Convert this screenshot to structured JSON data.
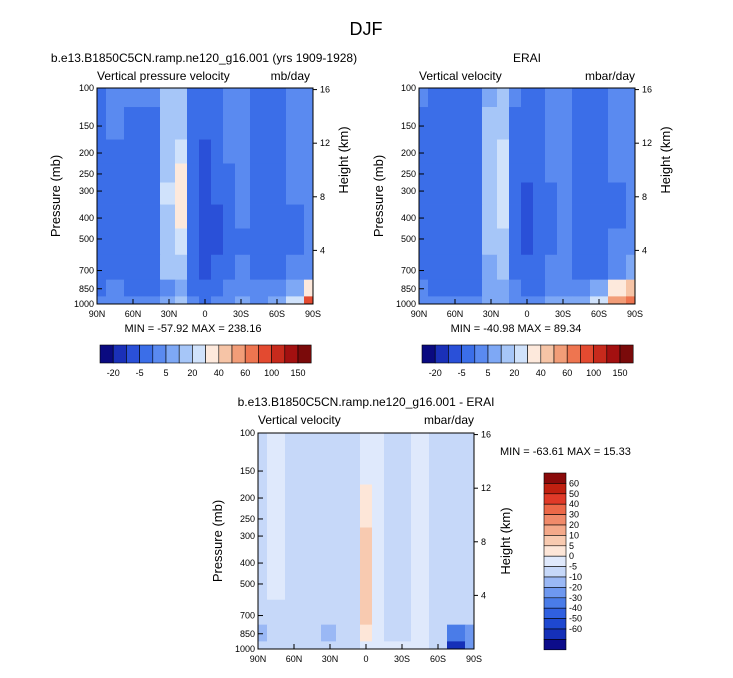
{
  "page_title": "DJF",
  "colors": {
    "cb_diverging": [
      "#0a0a80",
      "#1a30b8",
      "#2a50d8",
      "#3b6ee8",
      "#5a8af0",
      "#7ea8f5",
      "#a6c6f8",
      "#d0e2fb",
      "#fde9dc",
      "#f6c4a6",
      "#f29d78",
      "#ee7550",
      "#e34a30",
      "#c72a1c",
      "#a31010",
      "#7a0a0a"
    ],
    "cb_diff": [
      "#0c0c8a",
      "#1530b8",
      "#1e48d0",
      "#3060e0",
      "#4a7ce8",
      "#6e98f0",
      "#9ab8f5",
      "#c6d8f9",
      "#dfe9fc",
      "#fde6d8",
      "#f8cab0",
      "#f4a98a",
      "#f08a6a",
      "#ec6848",
      "#e03a28",
      "#c02010",
      "#8a0a0a"
    ]
  },
  "chart_data": [
    {
      "type": "heatmap",
      "title": "b.e13.B1850C5CN.ramp.ne120_g16.001 (yrs 1909-1928)",
      "left_label": "Vertical pressure velocity",
      "right_label": "mb/day",
      "ylabel": "Pressure (mb)",
      "ylabel_right": "Height (km)",
      "x_ticks": [
        "90N",
        "60N",
        "30N",
        "0",
        "30S",
        "60S",
        "90S"
      ],
      "y_ticks": [
        "100",
        "150",
        "200",
        "250",
        "300",
        "400",
        "500",
        "700",
        "850",
        "1000"
      ],
      "y_ticks_right": [
        "16",
        "12",
        "8",
        "4"
      ],
      "stats": "MIN = -57.92   MAX = 238.16",
      "colorbar_labels": [
        "-20",
        "-5",
        "5",
        "20",
        "40",
        "60",
        "100",
        "150"
      ],
      "x": [
        90,
        75,
        60,
        45,
        30,
        20,
        10,
        0,
        -10,
        -20,
        -30,
        -45,
        -60,
        -75,
        -90
      ],
      "y": [
        100,
        150,
        200,
        250,
        300,
        400,
        500,
        700,
        850,
        1000
      ],
      "z": [
        [
          -14,
          -10,
          -10,
          -10,
          -2,
          -1,
          -13,
          -19,
          -16,
          -10,
          -8,
          -11,
          -11,
          -9,
          -7
        ],
        [
          -14,
          -10,
          -11,
          -11,
          -2,
          1,
          -13,
          -20,
          -17,
          -10,
          -8,
          -12,
          -12,
          -9,
          -7
        ],
        [
          -15,
          -11,
          -12,
          -12,
          0,
          3,
          -14,
          -22,
          -18,
          -10,
          -9,
          -13,
          -12,
          -9,
          -7
        ],
        [
          -15,
          -11,
          -13,
          -13,
          1,
          5,
          -16,
          -24,
          -19,
          -11,
          -9,
          -13,
          -13,
          -10,
          -7
        ],
        [
          -16,
          -12,
          -14,
          -14,
          2,
          6,
          -17,
          -26,
          -20,
          -11,
          -10,
          -14,
          -13,
          -10,
          -8
        ],
        [
          -16,
          -12,
          -15,
          -15,
          1,
          5,
          -18,
          -28,
          -21,
          -12,
          -10,
          -15,
          -14,
          -11,
          -8
        ],
        [
          -16,
          -12,
          -16,
          -16,
          0,
          3,
          -18,
          -28,
          -21,
          -12,
          -11,
          -15,
          -14,
          -11,
          -8
        ],
        [
          -16,
          -12,
          -17,
          -17,
          -2,
          0,
          -17,
          -26,
          -19,
          -11,
          -10,
          -14,
          -13,
          -10,
          -7
        ],
        [
          -12,
          -10,
          -15,
          -15,
          -6,
          -4,
          -12,
          -20,
          -14,
          -9,
          -8,
          -10,
          -10,
          -5,
          5
        ],
        [
          -8,
          -6,
          -10,
          -10,
          -4,
          -2,
          -8,
          -14,
          -10,
          -6,
          -5,
          -7,
          -4,
          3,
          60
        ]
      ]
    },
    {
      "type": "heatmap",
      "title": "ERAI",
      "left_label": "Vertical velocity",
      "right_label": "mbar/day",
      "ylabel": "Pressure (mb)",
      "ylabel_right": "Height (km)",
      "x_ticks": [
        "90N",
        "60N",
        "30N",
        "0",
        "30S",
        "60S",
        "90S"
      ],
      "y_ticks": [
        "100",
        "150",
        "200",
        "250",
        "300",
        "400",
        "500",
        "700",
        "850",
        "1000"
      ],
      "y_ticks_right": [
        "16",
        "12",
        "8",
        "4"
      ],
      "stats": "MIN = -40.98   MAX =  89.34",
      "colorbar_labels": [
        "-20",
        "-5",
        "5",
        "20",
        "40",
        "60",
        "100",
        "150"
      ],
      "x": [
        90,
        75,
        60,
        45,
        30,
        20,
        10,
        0,
        -10,
        -20,
        -30,
        -45,
        -60,
        -75,
        -90
      ],
      "y": [
        100,
        150,
        200,
        250,
        300,
        400,
        500,
        700,
        850,
        1000
      ],
      "z": [
        [
          -10,
          -11,
          -11,
          -11,
          -3,
          -2,
          -10,
          -14,
          -13,
          -8,
          -7,
          -11,
          -11,
          -8,
          -7
        ],
        [
          -11,
          -12,
          -12,
          -12,
          -2,
          0,
          -11,
          -15,
          -14,
          -9,
          -8,
          -12,
          -12,
          -9,
          -7
        ],
        [
          -12,
          -12,
          -13,
          -13,
          -1,
          2,
          -12,
          -17,
          -15,
          -10,
          -9,
          -13,
          -13,
          -10,
          -8
        ],
        [
          -12,
          -13,
          -14,
          -14,
          0,
          3,
          -13,
          -19,
          -16,
          -10,
          -9,
          -14,
          -14,
          -10,
          -8
        ],
        [
          -13,
          -13,
          -15,
          -15,
          1,
          4,
          -14,
          -21,
          -17,
          -11,
          -10,
          -15,
          -14,
          -11,
          -8
        ],
        [
          -13,
          -14,
          -16,
          -16,
          0,
          3,
          -15,
          -23,
          -18,
          -11,
          -10,
          -15,
          -15,
          -11,
          -9
        ],
        [
          -13,
          -14,
          -17,
          -17,
          -1,
          1,
          -15,
          -22,
          -17,
          -11,
          -10,
          -15,
          -14,
          -10,
          -8
        ],
        [
          -13,
          -14,
          -17,
          -17,
          -3,
          -2,
          -14,
          -20,
          -15,
          -10,
          -9,
          -13,
          -11,
          -6,
          -4
        ],
        [
          -10,
          -12,
          -14,
          -14,
          -5,
          -4,
          -10,
          -15,
          -11,
          -8,
          -7,
          -9,
          -4,
          5,
          15
        ],
        [
          -6,
          -8,
          -9,
          -9,
          -4,
          -3,
          -7,
          -10,
          -7,
          -5,
          -4,
          -3,
          3,
          30,
          50
        ]
      ]
    },
    {
      "type": "heatmap",
      "title": "b.e13.B1850C5CN.ramp.ne120_g16.001 - ERAI",
      "left_label": "Vertical velocity",
      "right_label": "mbar/day",
      "ylabel": "Pressure (mb)",
      "ylabel_right": "Height (km)",
      "x_ticks": [
        "90N",
        "60N",
        "30N",
        "0",
        "30S",
        "60S",
        "90S"
      ],
      "y_ticks": [
        "100",
        "150",
        "200",
        "250",
        "300",
        "400",
        "500",
        "700",
        "850",
        "1000"
      ],
      "y_ticks_right": [
        "16",
        "12",
        "8",
        "4"
      ],
      "stats": "MIN = -63.61   MAX =  15.33",
      "colorbar_labels": [
        "60",
        "50",
        "40",
        "30",
        "20",
        "10",
        "5",
        "0",
        "-5",
        "-10",
        "-20",
        "-30",
        "-40",
        "-50",
        "-60"
      ],
      "x": [
        90,
        75,
        60,
        45,
        30,
        20,
        10,
        0,
        -10,
        -20,
        -30,
        -45,
        -60,
        -75,
        -90
      ],
      "y": [
        100,
        150,
        200,
        250,
        300,
        400,
        500,
        700,
        850,
        1000
      ],
      "z": [
        [
          -2,
          2,
          -2,
          -2,
          -1,
          -1,
          -2,
          2,
          2,
          -1,
          -1,
          2,
          -2,
          -1,
          -1
        ],
        [
          -2,
          2,
          -2,
          -2,
          -1,
          -1,
          -2,
          3,
          2,
          -1,
          -1,
          2,
          -2,
          -1,
          -1
        ],
        [
          -2,
          2,
          -2,
          -2,
          -1,
          -1,
          -2,
          5,
          3,
          -1,
          -1,
          2,
          -2,
          -1,
          -1
        ],
        [
          -3,
          2,
          -2,
          -2,
          -1,
          -1,
          -2,
          7,
          3,
          -1,
          -1,
          2,
          -2,
          -1,
          -1
        ],
        [
          -3,
          2,
          -2,
          -2,
          -1,
          -1,
          -2,
          10,
          4,
          -1,
          -1,
          2,
          -2,
          -1,
          -1
        ],
        [
          -3,
          1,
          -3,
          -3,
          -1,
          -1,
          -3,
          12,
          4,
          -1,
          -1,
          2,
          -2,
          -1,
          -1
        ],
        [
          -3,
          1,
          -3,
          -3,
          -2,
          -1,
          -3,
          14,
          4,
          -1,
          -1,
          2,
          -2,
          -1,
          -1
        ],
        [
          -4,
          -2,
          -4,
          -4,
          -3,
          -2,
          -3,
          12,
          3,
          -1,
          -1,
          2,
          -2,
          -3,
          -2
        ],
        [
          -8,
          -5,
          -4,
          -4,
          -6,
          -3,
          -2,
          6,
          2,
          -1,
          -1,
          2,
          -3,
          -25,
          -12
        ],
        [
          -4,
          -3,
          -3,
          -3,
          -3,
          -1,
          -1,
          3,
          1,
          0,
          0,
          2,
          -3,
          -60,
          -20
        ]
      ]
    }
  ]
}
